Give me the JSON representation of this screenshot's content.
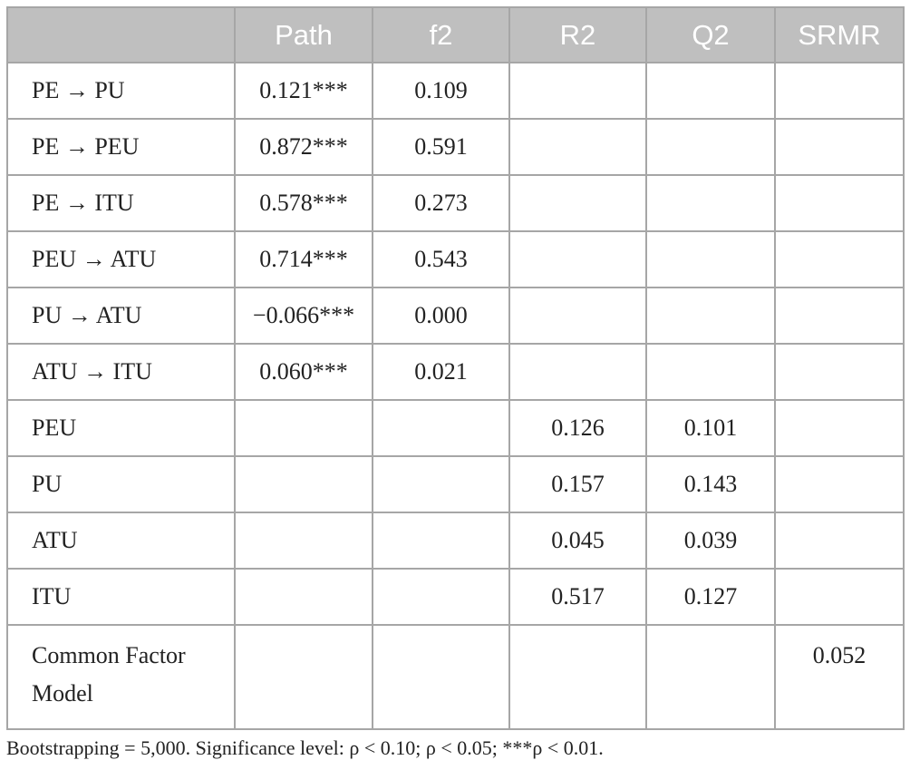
{
  "table": {
    "header": [
      "Path",
      "f2",
      "R2",
      "Q2",
      "SRMR"
    ],
    "rows": [
      {
        "label": "PE → PU",
        "path": "0.121***",
        "f2": "0.109"
      },
      {
        "label": "PE → PEU",
        "path": "0.872***",
        "f2": "0.591"
      },
      {
        "label": "PE → ITU",
        "path": "0.578***",
        "f2": "0.273"
      },
      {
        "label": "PEU → ATU",
        "path": "0.714***",
        "f2": "0.543"
      },
      {
        "label": "PU → ATU",
        "path": "−0.066***",
        "f2": "0.000"
      },
      {
        "label": "ATU → ITU",
        "path": "0.060***",
        "f2": "0.021"
      },
      {
        "label": "PEU",
        "r2": "0.126",
        "q2": "0.101"
      },
      {
        "label": "PU",
        "r2": "0.157",
        "q2": "0.143"
      },
      {
        "label": "ATU",
        "r2": "0.045",
        "q2": "0.039"
      },
      {
        "label": "ITU",
        "r2": "0.517",
        "q2": "0.127"
      },
      {
        "label": "Common Factor Model",
        "srmr": "0.052"
      }
    ]
  },
  "footnote": "Bootstrapping = 5,000. Significance level: ρ < 0.10; ρ < 0.05; ***ρ < 0.01."
}
